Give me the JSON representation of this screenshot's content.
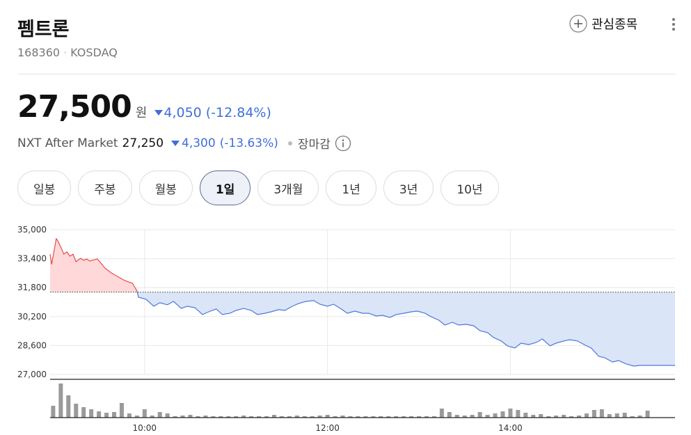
{
  "header": {
    "title": "펨트론",
    "code": "168360",
    "market": "KOSDAQ",
    "watch": "관심종목"
  },
  "price": {
    "value": "27,500",
    "unit": "원",
    "change": "4,050",
    "rate": "(-12.84%)"
  },
  "after": {
    "label": "NXT After Market",
    "value": "27,250",
    "change": "4,300",
    "rate": "(-13.63%)",
    "status": "장마감"
  },
  "tabs": [
    "일봉",
    "주봉",
    "월봉",
    "1일",
    "3개월",
    "1년",
    "3년",
    "10년"
  ],
  "selected_tab": 3,
  "chart_data": [
    {
      "type": "line",
      "up_color": "#e84a4a",
      "up_fill": "#ffd9d9",
      "down_color": "#4a78d8",
      "down_fill": "#dbe5f8",
      "baseline": 31550,
      "x": [
        -2,
        -1,
        2,
        3,
        5,
        7,
        9,
        11,
        13,
        15,
        18,
        20,
        22,
        24,
        29,
        31,
        34,
        38,
        43,
        47,
        52,
        55,
        56,
        61,
        66,
        70,
        75,
        79,
        84,
        88,
        93,
        98,
        102,
        107,
        111,
        116,
        120,
        125,
        130,
        134,
        139,
        143,
        148,
        152,
        157,
        161,
        166,
        171,
        175,
        180,
        184,
        189,
        193,
        198,
        203,
        207,
        212,
        216,
        221,
        225,
        230,
        235,
        239,
        244,
        248,
        253,
        257,
        262,
        266,
        271,
        276,
        280,
        285,
        289,
        294,
        298,
        303,
        307,
        312,
        317,
        321,
        326,
        330,
        335,
        339,
        344,
        349,
        353,
        358,
        362,
        367,
        371,
        376,
        381,
        385,
        408
      ],
      "values": [
        33650,
        33080,
        34500,
        34380,
        34040,
        33650,
        33770,
        33540,
        33650,
        33230,
        33420,
        33310,
        33380,
        33270,
        33380,
        33190,
        32880,
        32620,
        32380,
        32190,
        32040,
        31620,
        31270,
        31150,
        30770,
        30960,
        30850,
        31040,
        30650,
        30770,
        30690,
        30310,
        30460,
        30620,
        30310,
        30380,
        30540,
        30650,
        30540,
        30310,
        30380,
        30460,
        30580,
        30540,
        30770,
        30920,
        31040,
        31080,
        30880,
        30770,
        30880,
        30620,
        30380,
        30500,
        30380,
        30380,
        30230,
        30270,
        30150,
        30310,
        30380,
        30460,
        30500,
        30380,
        30190,
        30000,
        29730,
        29880,
        29730,
        29770,
        29690,
        29420,
        29310,
        29040,
        28850,
        28580,
        28460,
        28730,
        28650,
        28770,
        28960,
        28580,
        28730,
        28850,
        28920,
        28850,
        28620,
        28460,
        28000,
        27920,
        27690,
        27770,
        27580,
        27460,
        27500,
        27500
      ],
      "xlim": [
        -2,
        408
      ],
      "xticks": [
        {
          "value": 60,
          "label": "10:00"
        },
        {
          "value": 180,
          "label": "12:00"
        },
        {
          "value": 300,
          "label": "14:00"
        }
      ],
      "ylim": [
        27000,
        35000
      ],
      "yticks": [
        {
          "value": 27000,
          "label": "27,000"
        },
        {
          "value": 28600,
          "label": "28,600"
        },
        {
          "value": 30200,
          "label": "30,200"
        },
        {
          "value": 31800,
          "label": "31,800"
        },
        {
          "value": 33400,
          "label": "33,400"
        },
        {
          "value": 35000,
          "label": "35,000"
        }
      ],
      "grid": true
    },
    {
      "type": "bar",
      "color": "#9a9a9a",
      "ylim": [
        0,
        55
      ],
      "xlim": [
        -2,
        408
      ],
      "x": [
        0,
        5,
        10,
        15,
        20,
        25,
        30,
        35,
        40,
        45,
        50,
        55,
        60,
        65,
        70,
        75,
        80,
        85,
        90,
        95,
        100,
        105,
        110,
        115,
        120,
        125,
        130,
        135,
        140,
        145,
        150,
        155,
        160,
        165,
        170,
        175,
        180,
        185,
        190,
        195,
        200,
        205,
        210,
        215,
        220,
        225,
        230,
        235,
        240,
        245,
        250,
        255,
        260,
        265,
        270,
        275,
        280,
        285,
        290,
        295,
        300,
        305,
        310,
        315,
        320,
        325,
        330,
        335,
        340,
        345,
        350,
        355,
        360,
        365,
        370,
        375,
        380,
        385,
        390
      ],
      "values": [
        17,
        49,
        32,
        20,
        15,
        12,
        9,
        7,
        8,
        21,
        6,
        3,
        12,
        3,
        8,
        6,
        2,
        3,
        4,
        2,
        3,
        2,
        2,
        2,
        2,
        3,
        2,
        2,
        2,
        4,
        2,
        2,
        3,
        2,
        2,
        3,
        4,
        2,
        3,
        2,
        2,
        2,
        2,
        2,
        2,
        2,
        2,
        2,
        2,
        2,
        2,
        13,
        8,
        4,
        3,
        4,
        8,
        4,
        6,
        9,
        13,
        11,
        7,
        4,
        5,
        2,
        3,
        4,
        2,
        3,
        6,
        11,
        12,
        5,
        6,
        7,
        2,
        3,
        10
      ]
    }
  ]
}
